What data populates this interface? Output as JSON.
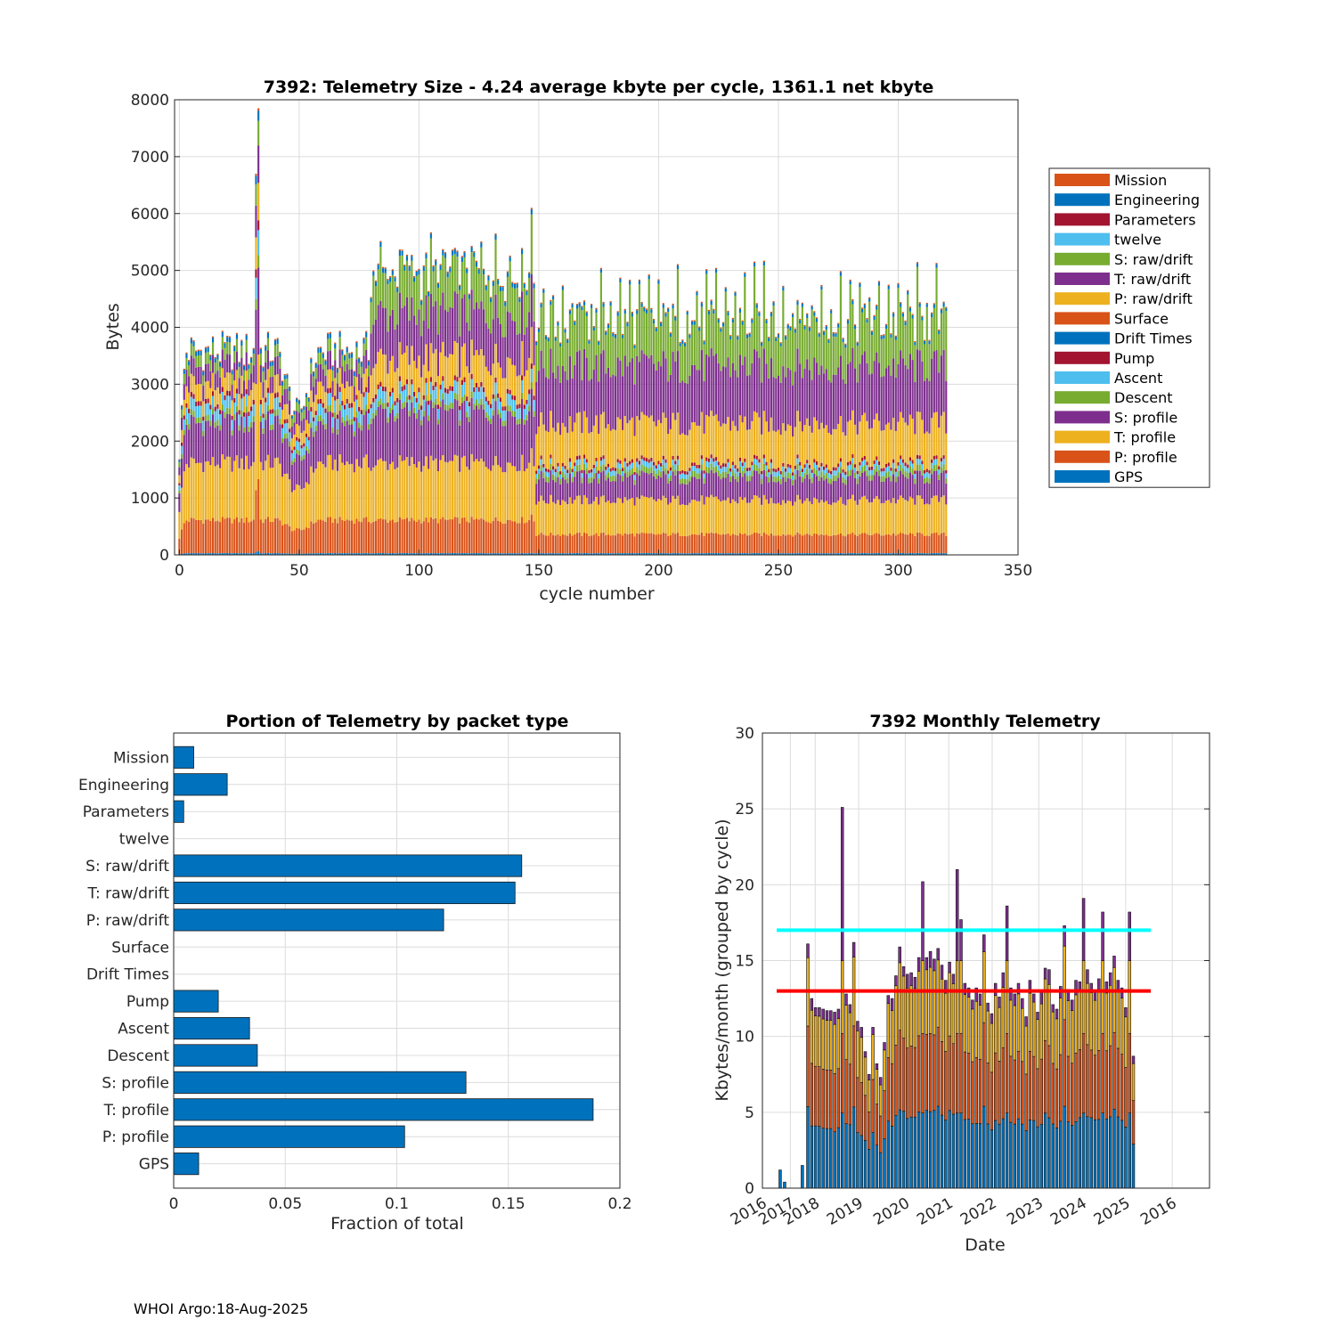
{
  "footer": "WHOI Argo:18-Aug-2025",
  "packet_colors": {
    "Mission": "#D95319",
    "Engineering": "#0072BD",
    "Parameters": "#A2142F",
    "twelve": "#4DBEEE",
    "S: raw/drift": "#77AC30",
    "T: raw/drift": "#7E2F8E",
    "P: raw/drift": "#EDB120",
    "Surface": "#D95319",
    "Drift Times": "#0072BD",
    "Pump": "#A2142F",
    "Ascent": "#4DBEEE",
    "Descent": "#77AC30",
    "S: profile": "#7E2F8E",
    "T: profile": "#EDB120",
    "P: profile": "#D95319",
    "GPS": "#0072BD"
  },
  "chart_data": [
    {
      "id": "top",
      "type": "bar",
      "stacked": true,
      "title": "7392: Telemetry Size - 4.24 average kbyte per cycle, 1361.1 net kbyte",
      "xlabel": "cycle number",
      "ylabel": "Bytes",
      "xlim": [
        -2,
        350
      ],
      "ylim": [
        0,
        8000
      ],
      "xticks": [
        0,
        50,
        100,
        150,
        200,
        250,
        300,
        350
      ],
      "xtick_labels": [
        "0",
        "50",
        "100",
        "150",
        "200",
        "250",
        "300",
        "350"
      ],
      "yticks": [
        0,
        1000,
        2000,
        3000,
        4000,
        5000,
        6000,
        7000,
        8000
      ],
      "ytick_labels": [
        "0",
        "1000",
        "2000",
        "3000",
        "4000",
        "5000",
        "6000",
        "7000",
        "8000"
      ],
      "legend_position": "outside-right",
      "legend": [
        "Mission",
        "Engineering",
        "Parameters",
        "twelve",
        "S: raw/drift",
        "T: raw/drift",
        "P: raw/drift",
        "Surface",
        "Drift Times",
        "Pump",
        "Ascent",
        "Descent",
        "S: profile",
        "T: profile",
        "P: profile",
        "GPS"
      ],
      "cycles": [
        0,
        320
      ],
      "phases": [
        {
          "cycles": [
            0,
            33
          ],
          "approx_bytes": {
            "GPS": 30,
            "P: profile": 580,
            "T: profile": 1000,
            "S: profile": 700,
            "Descent": 100,
            "Ascent": 200,
            "Pump": 80,
            "P: raw/drift": 300,
            "T: raw/drift": 300,
            "S: raw/drift": 200,
            "Engineering": 80,
            "Mission": 20
          },
          "approx_total": 3800
        },
        {
          "cycles": [
            34,
            79
          ],
          "approx_bytes": {
            "GPS": 30,
            "P: profile": 580,
            "T: profile": 1000,
            "S: profile": 700,
            "Descent": 100,
            "Ascent": 200,
            "Pump": 80,
            "P: raw/drift": 300,
            "T: raw/drift": 300,
            "S: raw/drift": 200,
            "Engineering": 80,
            "Mission": 20
          },
          "approx_total": 3700
        },
        {
          "cycles": [
            80,
            148
          ],
          "approx_bytes": {
            "GPS": 30,
            "P: profile": 580,
            "T: profile": 1000,
            "S: profile": 900,
            "Descent": 100,
            "Ascent": 200,
            "Pump": 80,
            "P: raw/drift": 550,
            "T: raw/drift": 800,
            "S: raw/drift": 600,
            "Engineering": 80,
            "Mission": 20
          },
          "approx_total": 4700
        },
        {
          "cycles": [
            149,
            320
          ],
          "approx_bytes": {
            "GPS": 30,
            "P: profile": 330,
            "T: profile": 600,
            "S: profile": 400,
            "Descent": 100,
            "Ascent": 90,
            "Pump": 60,
            "P: raw/drift": 700,
            "T: raw/drift": 1000,
            "S: raw/drift": 700,
            "Engineering": 60,
            "Mission": 20
          },
          "approx_total": 4100
        }
      ],
      "spikes": [
        {
          "cycle": 32,
          "total": 6700
        },
        {
          "cycle": 33,
          "total": 7850
        },
        {
          "cycle": 147,
          "total": 6100
        },
        {
          "cycle": 81,
          "total": 5000
        }
      ]
    },
    {
      "id": "bl",
      "type": "bar",
      "orientation": "horizontal",
      "title": "Portion of Telemetry by packet type",
      "xlabel": "Fraction of total",
      "ylabel": "",
      "xlim": [
        0,
        0.2
      ],
      "xticks": [
        0,
        0.05,
        0.1,
        0.15,
        0.2
      ],
      "xtick_labels": [
        "0",
        "0.05",
        "0.1",
        "0.15",
        "0.2"
      ],
      "categories": [
        "Mission",
        "Engineering",
        "Parameters",
        "twelve",
        "S: raw/drift",
        "T: raw/drift",
        "P: raw/drift",
        "Surface",
        "Drift Times",
        "Pump",
        "Ascent",
        "Descent",
        "S: profile",
        "T: profile",
        "P: profile",
        "GPS"
      ],
      "values": [
        0.009,
        0.024,
        0.0045,
        0,
        0.156,
        0.153,
        0.121,
        0,
        0,
        0.02,
        0.034,
        0.0375,
        0.131,
        0.188,
        0.1035,
        0.0112
      ],
      "bar_color": "#0072BD"
    },
    {
      "id": "br",
      "type": "bar",
      "stacked": true,
      "title": "7392 Monthly Telemetry",
      "xlabel": "Date",
      "ylabel": "Kbytes/month (grouped by cycle)",
      "ylim": [
        0,
        30
      ],
      "yticks": [
        0,
        5,
        10,
        15,
        20,
        25,
        30
      ],
      "ytick_labels": [
        "0",
        "5",
        "10",
        "15",
        "20",
        "25",
        "30"
      ],
      "xtick_labels": [
        "2016",
        "2017",
        "2018",
        "2019",
        "2020",
        "2021",
        "2022",
        "2023",
        "2024",
        "2025",
        "2016"
      ],
      "reference_lines": [
        {
          "value": 17,
          "color": "#00FFFF"
        },
        {
          "value": 13,
          "color": "#FF0000"
        }
      ],
      "series_names": [
        "blue",
        "orange",
        "yellow",
        "purple"
      ],
      "series_colors": [
        "#0072BD",
        "#D95319",
        "#EDB120",
        "#7E2F8E"
      ],
      "early_bars": [
        {
          "month_index": 4,
          "value": 1.2,
          "color": "#0072BD"
        },
        {
          "month_index": 5,
          "value": 0.4,
          "color": "#0072BD"
        },
        {
          "month_index": 9,
          "value": 1.5,
          "color": "#0072BD"
        }
      ],
      "first_month_index": 12,
      "monthly_totals": [
        16.1,
        12.5,
        11.9,
        11.9,
        11.8,
        11.7,
        11.7,
        11.6,
        11.8,
        25.1,
        12.8,
        12.1,
        16.2,
        11.0,
        10.6,
        9.0,
        7.5,
        10.6,
        8.2,
        7.3,
        9.6,
        12.7,
        12.5,
        14.0,
        15.9,
        14.6,
        14.1,
        14.2,
        13.9,
        15.2,
        20.2,
        15.2,
        15.6,
        15.1,
        15.8,
        14.7,
        13.7,
        14.9,
        14.1,
        21.0,
        17.7,
        13.5,
        13.2,
        12.4,
        13.2,
        12.8,
        16.7,
        12.2,
        11.5,
        13.5,
        12.6,
        14.2,
        18.6,
        13.2,
        12.8,
        13.5,
        12.5,
        11.3,
        13.7,
        12.8,
        11.6,
        13.0,
        14.5,
        14.4,
        12.1,
        11.8,
        13.3,
        17.3,
        13.1,
        12.4,
        13.7,
        13.6,
        19.1,
        14.4,
        13.5,
        12.9,
        13.8,
        18.2,
        13.6,
        14.2,
        15.3,
        13.7,
        13.2,
        11.9,
        18.2,
        8.7
      ]
    }
  ]
}
